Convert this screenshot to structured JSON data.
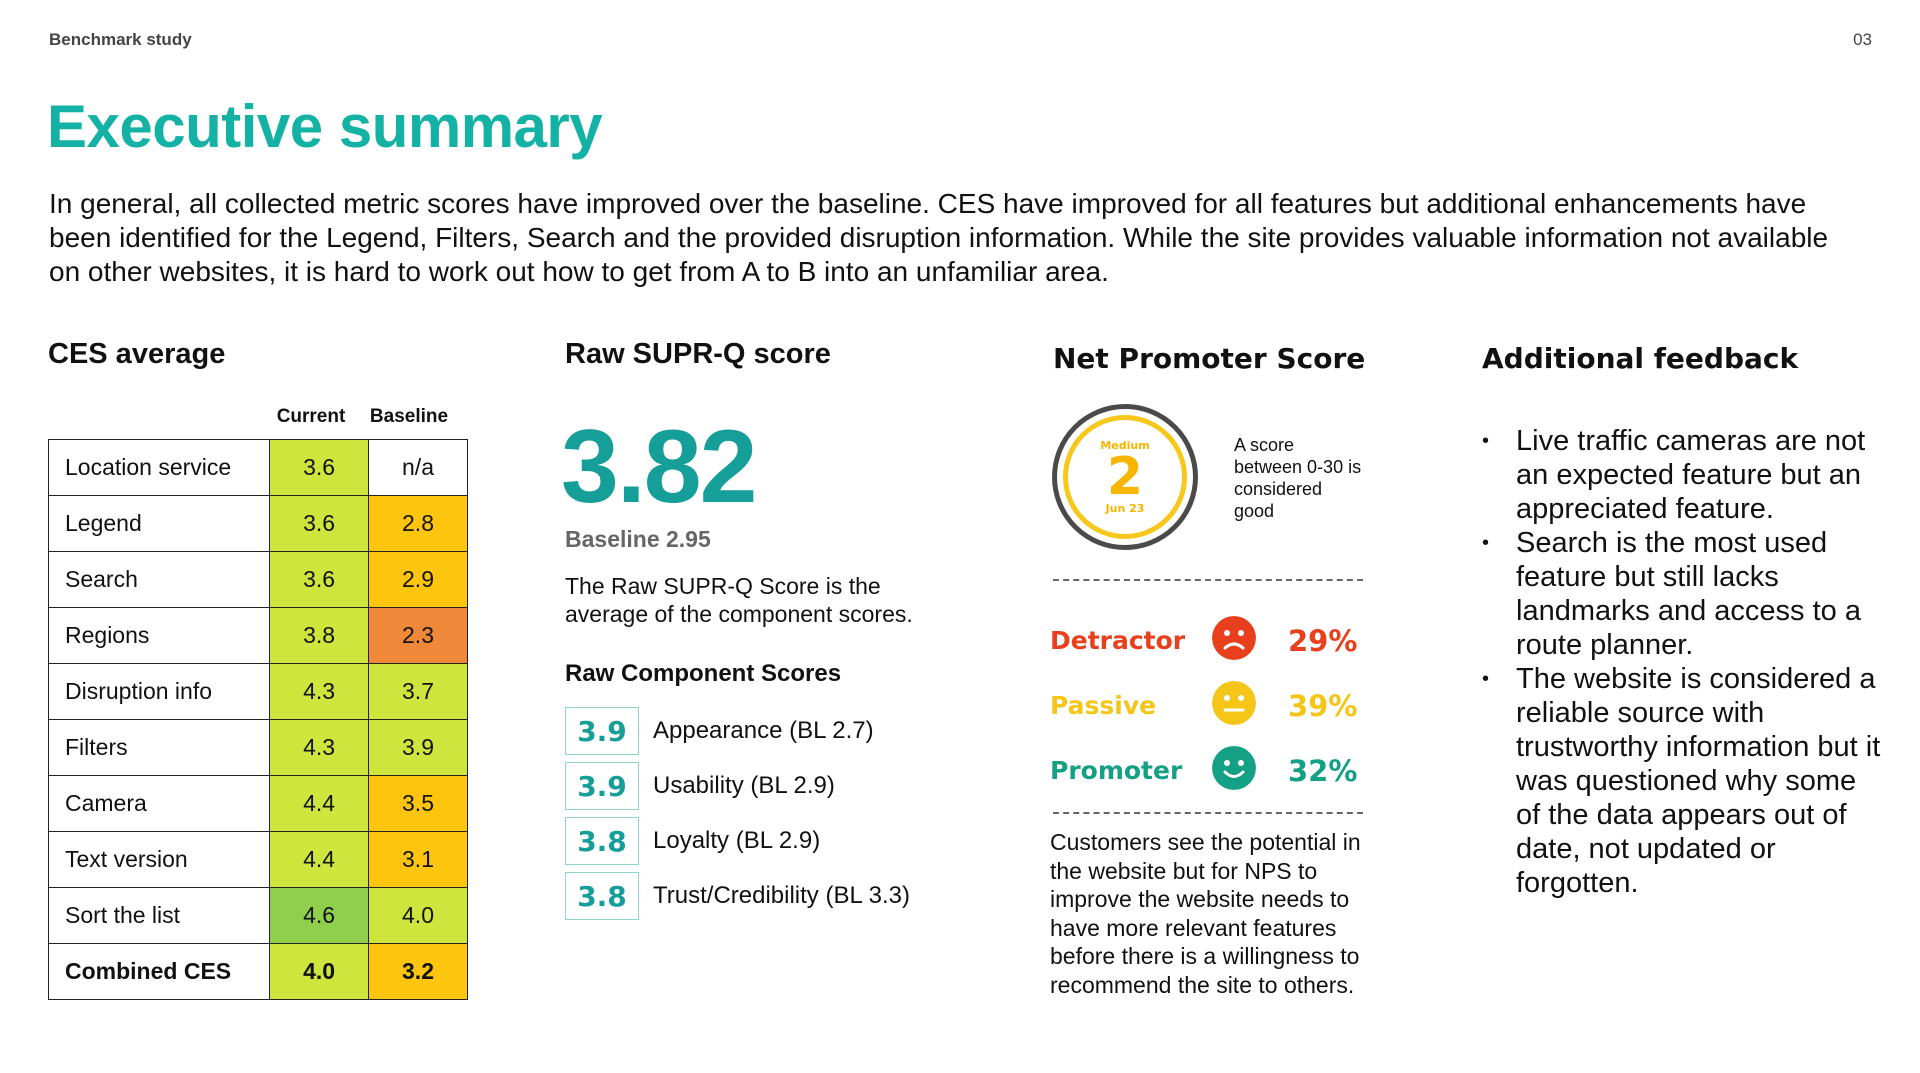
{
  "header": {
    "doc_label": "Benchmark study",
    "page_number": "03"
  },
  "title": "Executive summary",
  "intro": "In general, all collected metric scores have improved over the baseline. CES have improved for all features but additional enhancements have been identified for the Legend, Filters, Search and the provided disruption information. While the site provides valuable information not available on other websites, it is hard to work out how to get from A to B into an unfamiliar area.",
  "ces": {
    "title": "CES average",
    "col_current": "Current",
    "col_baseline": "Baseline",
    "rows": [
      {
        "label": "Location service",
        "current": "3.6",
        "baseline": "n/a",
        "cur_color": "#cde53d",
        "base_color": "#ffffff"
      },
      {
        "label": "Legend",
        "current": "3.6",
        "baseline": "2.8",
        "cur_color": "#cde53d",
        "base_color": "#fdc50d"
      },
      {
        "label": "Search",
        "current": "3.6",
        "baseline": "2.9",
        "cur_color": "#cde53d",
        "base_color": "#fdc50d"
      },
      {
        "label": "Regions",
        "current": "3.8",
        "baseline": "2.3",
        "cur_color": "#cde53d",
        "base_color": "#f0883a"
      },
      {
        "label": "Disruption info",
        "current": "4.3",
        "baseline": "3.7",
        "cur_color": "#cde53d",
        "base_color": "#cde53d"
      },
      {
        "label": "Filters",
        "current": "4.3",
        "baseline": "3.9",
        "cur_color": "#cde53d",
        "base_color": "#cde53d"
      },
      {
        "label": "Camera",
        "current": "4.4",
        "baseline": "3.5",
        "cur_color": "#cde53d",
        "base_color": "#fdc50d"
      },
      {
        "label": "Text version",
        "current": "4.4",
        "baseline": "3.1",
        "cur_color": "#cde53d",
        "base_color": "#fdc50d"
      },
      {
        "label": "Sort the list",
        "current": "4.6",
        "baseline": "4.0",
        "cur_color": "#8fcf4c",
        "base_color": "#cde53d"
      },
      {
        "label": "Combined CES",
        "current": "4.0",
        "baseline": "3.2",
        "cur_color": "#cde53d",
        "base_color": "#fdc50d",
        "total": true
      }
    ]
  },
  "supr": {
    "title": "Raw SUPR-Q score",
    "score": "3.82",
    "baseline": "Baseline 2.95",
    "description": "The Raw SUPR-Q Score is the average of the component scores.",
    "components_title": "Raw Component Scores",
    "components": [
      {
        "value": "3.9",
        "label": "Appearance (BL 2.7)"
      },
      {
        "value": "3.9",
        "label": "Usability (BL 2.9)"
      },
      {
        "value": "3.8",
        "label": "Loyalty (BL 2.9)"
      },
      {
        "value": "3.8",
        "label": "Trust/Credibility (BL 3.3)"
      }
    ]
  },
  "nps": {
    "title": "Net Promoter Score",
    "badge_level": "Medium",
    "badge_value": "2",
    "badge_date": "Jun 23",
    "note": "A score between 0-30 is considered good",
    "categories": [
      {
        "label": "Detractor",
        "percent": "29%",
        "color": "#e8401c",
        "face": "sad-face-icon"
      },
      {
        "label": "Passive",
        "percent": "39%",
        "color": "#f5c518",
        "face": "neutral-face-icon"
      },
      {
        "label": "Promoter",
        "percent": "32%",
        "color": "#14a085",
        "face": "happy-face-icon"
      }
    ],
    "summary": "Customers see the potential in the website but for NPS to improve the website needs to have more relevant features before there is a willingness to recommend the site to others."
  },
  "feedback": {
    "title": "Additional feedback",
    "items": [
      "Live traffic cameras are not an expected feature but an appreciated feature.",
      "Search is the most used feature but still lacks landmarks and access to a route planner.",
      "The website is considered a reliable source with trustworthy information but it was questioned why some of the data appears out of date, not updated or forgotten."
    ]
  }
}
